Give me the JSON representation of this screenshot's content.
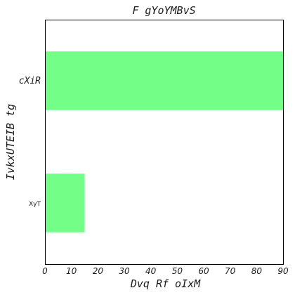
{
  "chart_data": {
    "type": "bar",
    "orientation": "horizontal",
    "title": "F gYoYMBvS",
    "xlabel": "Dvq Rf  oIxM",
    "ylabel": "IvkxUTEIB tg",
    "categories": [
      "cXiR",
      "XyT"
    ],
    "values": [
      90,
      15
    ],
    "xlim": [
      0,
      90
    ],
    "xticks": [
      "0",
      "10",
      "20",
      "30",
      "40",
      "50",
      "60",
      "70",
      "80",
      "90"
    ],
    "grid": false,
    "bar_color": "#73fe87"
  }
}
